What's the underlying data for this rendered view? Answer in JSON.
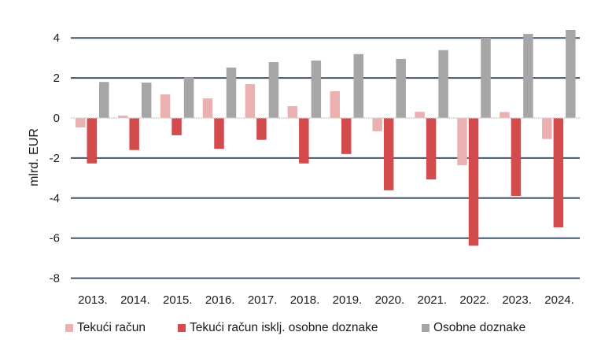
{
  "chart_data": {
    "type": "bar",
    "title": "",
    "xlabel": "",
    "ylabel": "mlrd. EUR",
    "ylim": [
      -8,
      4.5
    ],
    "yticks": [
      4,
      2,
      0,
      -2,
      -4,
      -6,
      -8
    ],
    "grid": true,
    "legend_position": "bottom",
    "categories": [
      "2013.",
      "2014.",
      "2015.",
      "2016.",
      "2017.",
      "2018.",
      "2019.",
      "2020.",
      "2021.",
      "2022.",
      "2023.",
      "2024."
    ],
    "series": [
      {
        "name": "Tekući račun",
        "color": "#ebb1b1",
        "values": [
          -0.47,
          0.12,
          1.18,
          0.98,
          1.69,
          0.59,
          1.34,
          -0.66,
          0.31,
          -2.36,
          0.3,
          -1.05
        ]
      },
      {
        "name": "Tekući račun isklj. osobne doznake",
        "color": "#d44b4e",
        "values": [
          -2.27,
          -1.6,
          -0.86,
          -1.54,
          -1.09,
          -2.27,
          -1.8,
          -3.61,
          -3.07,
          -6.38,
          -3.89,
          -5.46
        ]
      },
      {
        "name": "Osobne doznake",
        "color": "#a6a6a6",
        "values": [
          1.8,
          1.77,
          2.03,
          2.52,
          2.79,
          2.87,
          3.19,
          2.95,
          3.39,
          4.0,
          4.2,
          4.4
        ]
      }
    ]
  },
  "legend": {
    "items": [
      {
        "label": "Tekući račun",
        "color": "#ebb1b1"
      },
      {
        "label": "Tekući račun isklj. osobne doznake",
        "color": "#d44b4e"
      },
      {
        "label": "Osobne doznake",
        "color": "#a6a6a6"
      }
    ]
  },
  "colors": {
    "gridline": "#44546a",
    "zero_line": "#d0d0d0"
  }
}
